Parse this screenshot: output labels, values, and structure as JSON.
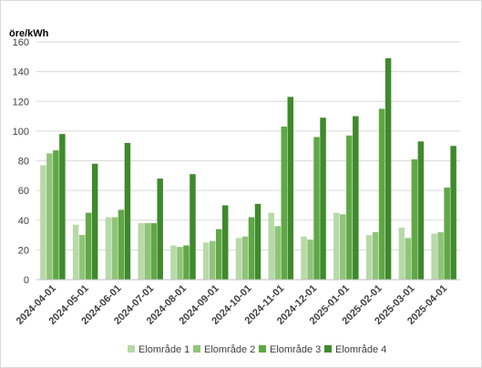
{
  "chart_data": {
    "type": "bar",
    "ylabel": "öre/kWh",
    "ylim": [
      0,
      160
    ],
    "yticks": [
      0,
      20,
      40,
      60,
      80,
      100,
      120,
      140,
      160
    ],
    "grid": true,
    "legend_position": "bottom",
    "categories": [
      "2024-04-01",
      "2024-05-01",
      "2024-06-01",
      "2024-07-01",
      "2024-08-01",
      "2024-09-01",
      "2024-10-01",
      "2024-11-01",
      "2024-12-01",
      "2025-01-01",
      "2025-02-01",
      "2025-03-01",
      "2025-04-01"
    ],
    "series": [
      {
        "name": "Elområde 1",
        "color": "#b8d9a8",
        "values": [
          77,
          37,
          42,
          38,
          23,
          25,
          28,
          45,
          29,
          45,
          30,
          35,
          31
        ]
      },
      {
        "name": "Elområde 2",
        "color": "#8fc479",
        "values": [
          85,
          30,
          42,
          38,
          22,
          26,
          29,
          36,
          27,
          44,
          32,
          28,
          32
        ]
      },
      {
        "name": "Elområde 3",
        "color": "#5fa845",
        "values": [
          87,
          45,
          47,
          38,
          23,
          34,
          42,
          103,
          96,
          97,
          115,
          81,
          62
        ]
      },
      {
        "name": "Elområde 4",
        "color": "#3f8a2c",
        "values": [
          98,
          78,
          92,
          68,
          71,
          50,
          51,
          123,
          109,
          110,
          149,
          93,
          90
        ]
      }
    ]
  }
}
